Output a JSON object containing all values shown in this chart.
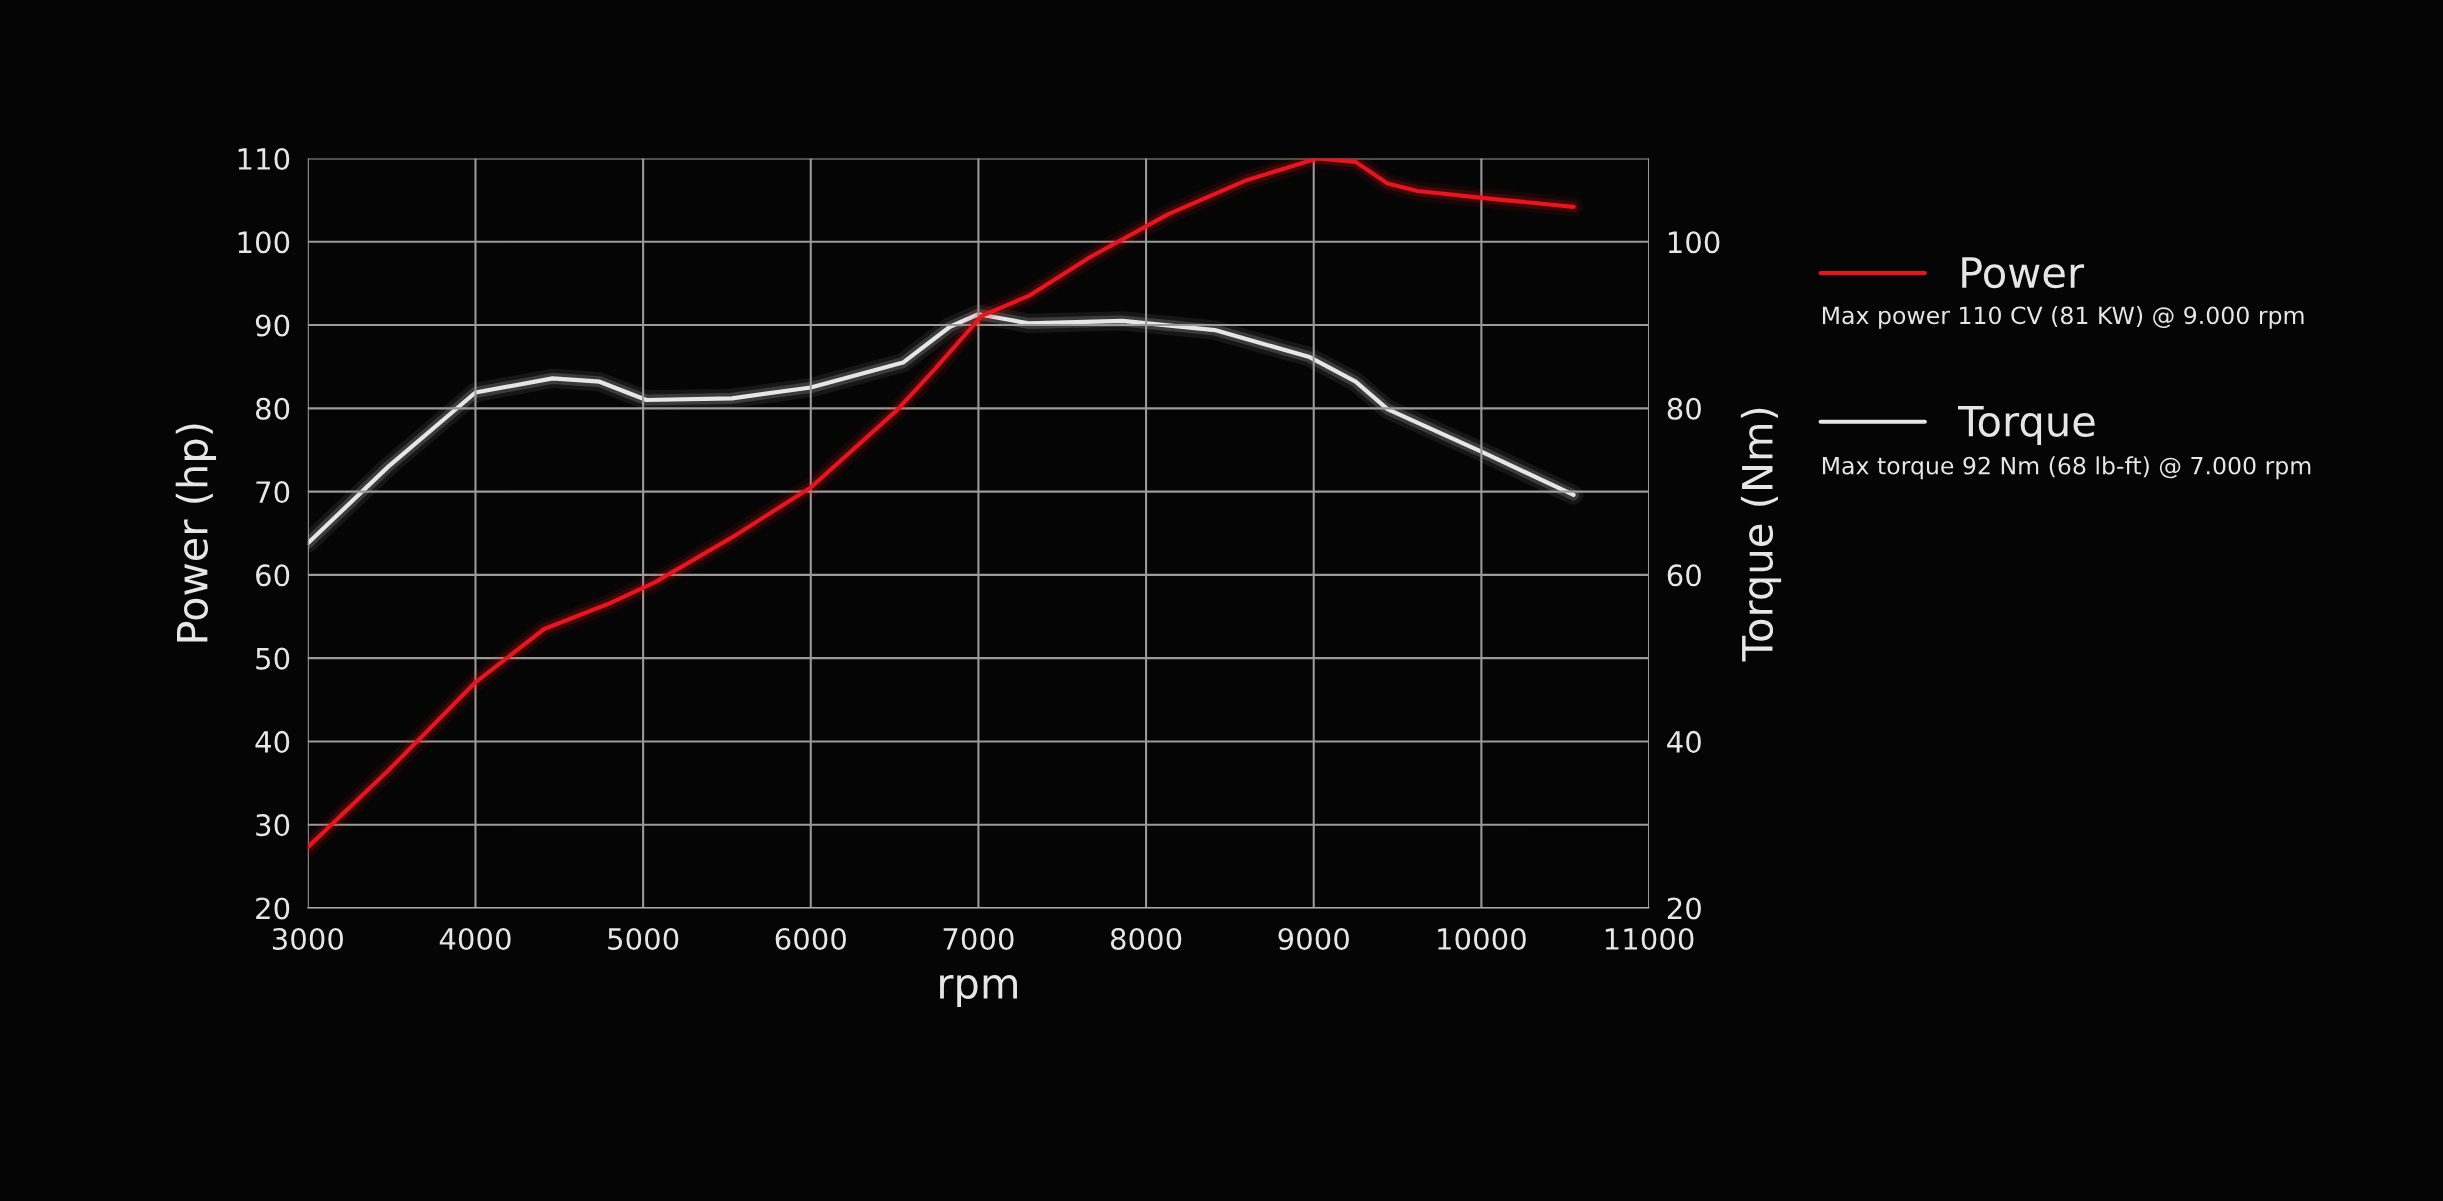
{
  "chart_data": {
    "type": "line",
    "xlabel": "rpm",
    "ylabel": "Power (hp)",
    "y2label": "Torque (Nm)",
    "xlim": [
      3000,
      11000
    ],
    "xticks": [
      3000,
      4000,
      5000,
      6000,
      7000,
      8000,
      9000,
      10000,
      11000
    ],
    "ylim": [
      20,
      110
    ],
    "yticks": [
      20,
      30,
      40,
      50,
      60,
      70,
      80,
      90,
      100,
      110
    ],
    "y2lim": [
      20,
      110
    ],
    "y2ticks": [
      20,
      40,
      60,
      80,
      100
    ],
    "grid": true,
    "legend": "right",
    "marker": "none",
    "line_style": "solid",
    "series": [
      {
        "name": "Power",
        "color": "#e8141e",
        "x": [
          3000,
          3480,
          4000,
          4410,
          4790,
          5070,
          5530,
          6000,
          6510,
          6740,
          7020,
          7300,
          7670,
          8130,
          8600,
          9020,
          9250,
          9440,
          9620,
          10090,
          10550
        ],
        "values": [
          27.3,
          36.5,
          47.1,
          53.5,
          56.5,
          59.1,
          64.5,
          70.5,
          79.7,
          84.7,
          91.1,
          93.5,
          98.2,
          103.3,
          107.4,
          110,
          109.6,
          107,
          106.1,
          105.1,
          104.2
        ]
      },
      {
        "name": "Torque",
        "color": "#e6e6e6",
        "axis": "y2",
        "x": [
          3000,
          3480,
          4000,
          4460,
          4740,
          5020,
          5530,
          6000,
          6550,
          6830,
          7000,
          7300,
          7860,
          8410,
          8970,
          9250,
          9440,
          10000,
          10550
        ],
        "values": [
          63.8,
          73,
          81.9,
          83.6,
          83.2,
          81,
          81.2,
          82.5,
          85.5,
          89.8,
          91.3,
          90.2,
          90.5,
          89.4,
          86.2,
          83.2,
          79.9,
          74.8,
          69.6
        ]
      }
    ],
    "annotations": [
      "Max power 110 CV (81 KW) @ 9.000 rpm",
      "Max torque 92 Nm (68 lb-ft) @ 7.000 rpm"
    ]
  }
}
